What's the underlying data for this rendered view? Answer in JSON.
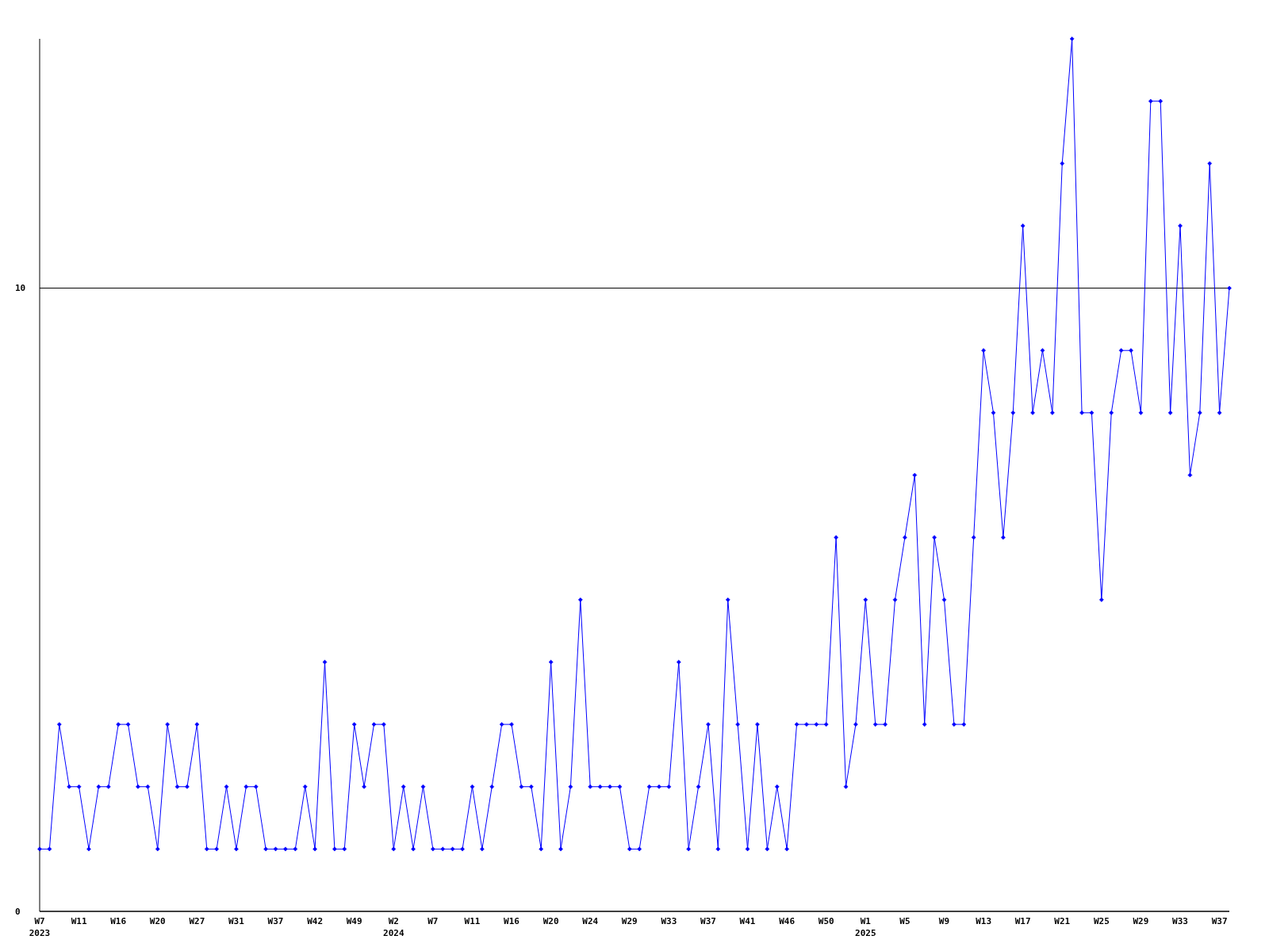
{
  "chart_data": {
    "type": "line",
    "categories": [
      "W7\n2023",
      null,
      null,
      null,
      "W11",
      null,
      null,
      null,
      "W16",
      null,
      null,
      null,
      "W20",
      null,
      null,
      null,
      "W27",
      null,
      null,
      null,
      "W31",
      null,
      null,
      null,
      "W37",
      null,
      null,
      null,
      "W42",
      null,
      null,
      null,
      "W49",
      null,
      null,
      null,
      "W2\n2024",
      null,
      null,
      null,
      "W7",
      null,
      null,
      null,
      "W11",
      null,
      null,
      null,
      "W16",
      null,
      null,
      null,
      "W20",
      null,
      null,
      null,
      "W24",
      null,
      null,
      null,
      "W29",
      null,
      null,
      null,
      "W33",
      null,
      null,
      null,
      "W37",
      null,
      null,
      null,
      "W41",
      null,
      null,
      null,
      "W46",
      null,
      null,
      null,
      "W50",
      null,
      null,
      null,
      "W1\n2025",
      null,
      null,
      null,
      "W5",
      null,
      null,
      null,
      "W9",
      null,
      null,
      null,
      "W13",
      null,
      null,
      null,
      "W17",
      null,
      null,
      null,
      "W21",
      null,
      null,
      null,
      "W25",
      null,
      null,
      null,
      "W29",
      null,
      null,
      null,
      "W33",
      null,
      null,
      null,
      "W37",
      null
    ],
    "series": [
      {
        "color": "#0000ff",
        "values": [
          1,
          1,
          3,
          2,
          2,
          1,
          2,
          2,
          3,
          3,
          2,
          2,
          1,
          3,
          2,
          2,
          3,
          1,
          1,
          2,
          1,
          2,
          2,
          1,
          1,
          1,
          1,
          2,
          1,
          4,
          1,
          1,
          3,
          2,
          3,
          3,
          1,
          2,
          1,
          2,
          1,
          1,
          1,
          1,
          2,
          1,
          2,
          3,
          3,
          2,
          2,
          1,
          4,
          1,
          2,
          5,
          2,
          2,
          2,
          2,
          1,
          1,
          2,
          2,
          2,
          4,
          1,
          2,
          3,
          1,
          5,
          3,
          1,
          3,
          1,
          2,
          1,
          3,
          3,
          3,
          3,
          6,
          2,
          3,
          5,
          3,
          3,
          5,
          6,
          7,
          3,
          6,
          5,
          3,
          3,
          6,
          9,
          8,
          6,
          8,
          11,
          8,
          9,
          8,
          12,
          14,
          8,
          8,
          5,
          8,
          9,
          9,
          8,
          13,
          13,
          8,
          11,
          7,
          8,
          12,
          8,
          10
        ]
      }
    ],
    "ylim": [
      0,
      14
    ],
    "yticks": [
      0,
      10
    ],
    "grid": "y",
    "marker": "diamond",
    "line_style": "solid"
  }
}
